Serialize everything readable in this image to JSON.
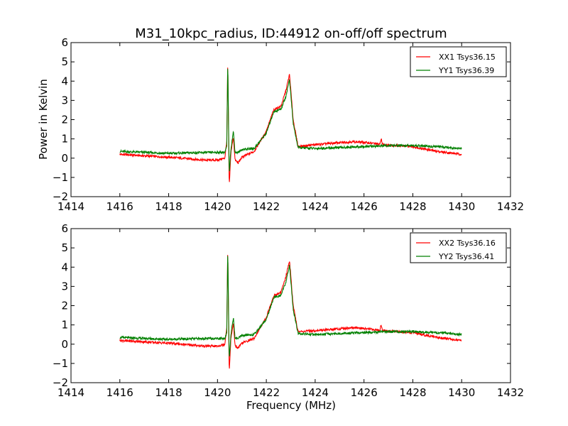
{
  "figure": {
    "title": "M31_10kpc_radius, ID:44912 on-off/off spectrum",
    "ylabel": "Power in Kelvin",
    "xlabel": "Frequency (MHz)"
  },
  "chart_data": [
    {
      "type": "line",
      "xlim": [
        1414,
        1432
      ],
      "ylim": [
        -2,
        6
      ],
      "x_ticks": [
        1414,
        1416,
        1418,
        1420,
        1422,
        1424,
        1426,
        1428,
        1430,
        1432
      ],
      "y_ticks": [
        -2,
        -1,
        0,
        1,
        2,
        3,
        4,
        5,
        6
      ],
      "legend_placement": "top-right",
      "series": [
        {
          "name": "XX1 Tsys36.15",
          "color": "#ff0000",
          "x": [
            1416,
            1417,
            1418,
            1419,
            1419.5,
            1420,
            1420.3,
            1420.38,
            1420.42,
            1420.48,
            1420.55,
            1420.65,
            1420.72,
            1420.85,
            1421,
            1421.5,
            1422,
            1422.3,
            1422.6,
            1422.8,
            1422.95,
            1423.1,
            1423.3,
            1424,
            1425,
            1425.5,
            1426,
            1426.5,
            1426.65,
            1426.7,
            1426.75,
            1427,
            1428,
            1429,
            1430
          ],
          "values": [
            0.2,
            0.12,
            0.05,
            -0.05,
            -0.1,
            -0.1,
            0.0,
            0.9,
            5.1,
            -1.5,
            0.3,
            1.1,
            -0.1,
            -0.25,
            0.05,
            0.35,
            1.4,
            2.5,
            2.7,
            3.5,
            4.35,
            2.0,
            0.6,
            0.7,
            0.8,
            0.85,
            0.82,
            0.75,
            0.7,
            1.05,
            0.72,
            0.68,
            0.6,
            0.35,
            0.2
          ]
        },
        {
          "name": "YY1 Tsys36.39",
          "color": "#008000",
          "x": [
            1416,
            1417,
            1418,
            1419,
            1420,
            1420.3,
            1420.38,
            1420.42,
            1420.48,
            1420.55,
            1420.65,
            1420.72,
            1420.85,
            1421,
            1421.5,
            1422,
            1422.3,
            1422.6,
            1422.8,
            1422.95,
            1423.1,
            1423.3,
            1424,
            1425,
            1426,
            1427,
            1428,
            1429,
            1430
          ],
          "values": [
            0.35,
            0.3,
            0.25,
            0.28,
            0.3,
            0.3,
            0.6,
            5.05,
            -0.8,
            0.5,
            1.4,
            0.3,
            0.3,
            0.45,
            0.5,
            1.3,
            2.4,
            2.55,
            3.2,
            4.1,
            1.8,
            0.55,
            0.5,
            0.55,
            0.6,
            0.65,
            0.65,
            0.6,
            0.5
          ]
        }
      ]
    },
    {
      "type": "line",
      "xlim": [
        1414,
        1432
      ],
      "ylim": [
        -2,
        6
      ],
      "x_ticks": [
        1414,
        1416,
        1418,
        1420,
        1422,
        1424,
        1426,
        1428,
        1430,
        1432
      ],
      "y_ticks": [
        -2,
        -1,
        0,
        1,
        2,
        3,
        4,
        5,
        6
      ],
      "legend_placement": "top-right",
      "series": [
        {
          "name": "XX2 Tsys36.16",
          "color": "#ff0000",
          "x": [
            1416,
            1417,
            1418,
            1419,
            1419.5,
            1420,
            1420.3,
            1420.38,
            1420.42,
            1420.48,
            1420.55,
            1420.65,
            1420.72,
            1420.85,
            1421,
            1421.5,
            1422,
            1422.3,
            1422.6,
            1422.8,
            1422.95,
            1423.1,
            1423.3,
            1424,
            1425,
            1425.5,
            1426,
            1426.5,
            1426.65,
            1426.7,
            1426.75,
            1427,
            1428,
            1429,
            1430
          ],
          "values": [
            0.2,
            0.12,
            0.05,
            -0.05,
            -0.1,
            -0.1,
            0.0,
            0.9,
            5.0,
            -1.5,
            0.3,
            1.1,
            -0.1,
            -0.2,
            0.05,
            0.3,
            1.4,
            2.5,
            2.7,
            3.5,
            4.35,
            2.0,
            0.65,
            0.7,
            0.8,
            0.85,
            0.82,
            0.75,
            0.7,
            1.05,
            0.72,
            0.68,
            0.6,
            0.35,
            0.2
          ]
        },
        {
          "name": "YY2 Tsys36.41",
          "color": "#008000",
          "x": [
            1416,
            1417,
            1418,
            1419,
            1420,
            1420.3,
            1420.38,
            1420.42,
            1420.48,
            1420.55,
            1420.65,
            1420.72,
            1420.85,
            1421,
            1421.5,
            1422,
            1422.3,
            1422.6,
            1422.8,
            1422.95,
            1423.1,
            1423.3,
            1424,
            1425,
            1426,
            1427,
            1428,
            1429,
            1430
          ],
          "values": [
            0.35,
            0.3,
            0.25,
            0.28,
            0.3,
            0.3,
            0.6,
            5.05,
            -0.8,
            0.5,
            1.4,
            0.3,
            0.3,
            0.45,
            0.5,
            1.3,
            2.4,
            2.55,
            3.2,
            4.1,
            1.8,
            0.55,
            0.5,
            0.55,
            0.6,
            0.65,
            0.65,
            0.6,
            0.5
          ]
        }
      ]
    }
  ]
}
